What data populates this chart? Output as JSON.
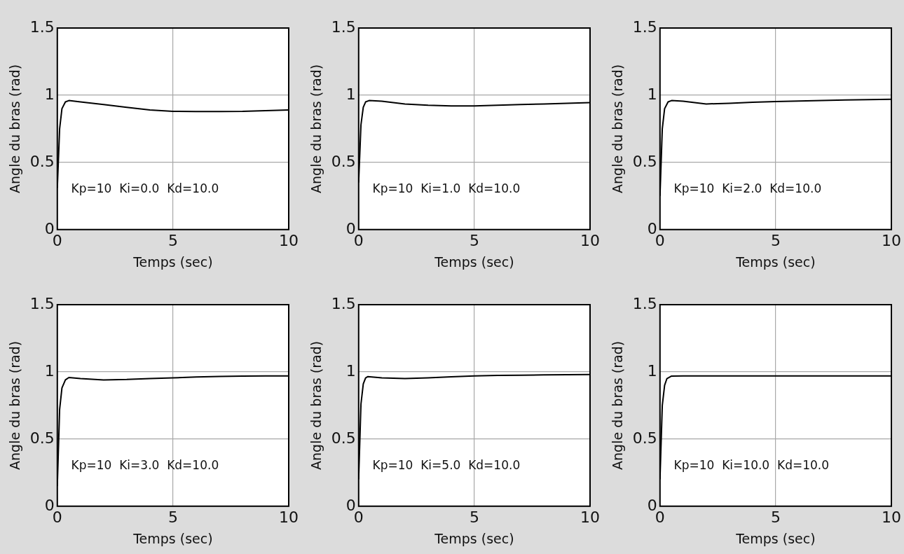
{
  "chart_data": [
    {
      "type": "line",
      "xlabel": "Temps (sec)",
      "ylabel": "Angle du bras (rad)",
      "annotations": [
        "Kp=10  Ki=0.0  Kd=10.0"
      ],
      "xlim": [
        0,
        10
      ],
      "ylim": [
        0,
        1.5
      ],
      "xticks": [
        0,
        5,
        10
      ],
      "yticks": [
        0,
        0.5,
        1,
        1.5
      ],
      "grid": true,
      "legend": false,
      "marker": "none",
      "line_style": "solid",
      "series": [
        {
          "color": "#000000",
          "x": [
            0,
            0.1,
            0.2,
            0.35,
            0.5,
            1,
            2,
            3,
            4,
            5,
            6,
            7,
            8,
            9,
            10
          ],
          "values": [
            0.31,
            0.75,
            0.9,
            0.95,
            0.96,
            0.95,
            0.93,
            0.91,
            0.89,
            0.88,
            0.878,
            0.879,
            0.88,
            0.885,
            0.89
          ]
        }
      ]
    },
    {
      "type": "line",
      "xlabel": "Temps (sec)",
      "ylabel": "Angle du bras (rad)",
      "annotations": [
        "Kp=10  Ki=1.0  Kd=10.0"
      ],
      "xlim": [
        0,
        10
      ],
      "ylim": [
        0,
        1.5
      ],
      "xticks": [
        0,
        5,
        10
      ],
      "yticks": [
        0,
        0.5,
        1,
        1.5
      ],
      "grid": true,
      "legend": false,
      "marker": "none",
      "line_style": "solid",
      "series": [
        {
          "color": "#000000",
          "x": [
            0,
            0.1,
            0.2,
            0.3,
            0.45,
            1,
            2,
            3,
            4,
            5,
            6,
            7,
            8,
            9,
            10
          ],
          "values": [
            0.35,
            0.78,
            0.91,
            0.95,
            0.96,
            0.955,
            0.935,
            0.925,
            0.92,
            0.92,
            0.925,
            0.93,
            0.935,
            0.94,
            0.945
          ]
        }
      ]
    },
    {
      "type": "line",
      "xlabel": "Temps (sec)",
      "ylabel": "Angle du bras (rad)",
      "annotations": [
        "Kp=10  Ki=2.0  Kd=10.0"
      ],
      "xlim": [
        0,
        10
      ],
      "ylim": [
        0,
        1.5
      ],
      "xticks": [
        0,
        5,
        10
      ],
      "yticks": [
        0,
        0.5,
        1,
        1.5
      ],
      "grid": true,
      "legend": false,
      "marker": "none",
      "line_style": "solid",
      "series": [
        {
          "color": "#000000",
          "x": [
            0,
            0.1,
            0.2,
            0.35,
            0.5,
            1,
            2,
            3,
            4,
            5,
            6,
            7,
            8,
            9,
            10
          ],
          "values": [
            0.25,
            0.75,
            0.9,
            0.95,
            0.96,
            0.955,
            0.935,
            0.94,
            0.947,
            0.953,
            0.957,
            0.961,
            0.964,
            0.967,
            0.97
          ]
        }
      ]
    },
    {
      "type": "line",
      "xlabel": "Temps (sec)",
      "ylabel": "Angle du bras (rad)",
      "annotations": [
        "Kp=10  Ki=3.0  Kd=10.0"
      ],
      "xlim": [
        0,
        10
      ],
      "ylim": [
        0,
        1.5
      ],
      "xticks": [
        0,
        5,
        10
      ],
      "yticks": [
        0,
        0.5,
        1,
        1.5
      ],
      "grid": true,
      "legend": false,
      "marker": "none",
      "line_style": "solid",
      "series": [
        {
          "color": "#000000",
          "x": [
            0,
            0.1,
            0.2,
            0.35,
            0.5,
            1,
            2,
            3,
            4,
            5,
            6,
            7,
            8,
            9,
            10
          ],
          "values": [
            0.15,
            0.72,
            0.88,
            0.94,
            0.958,
            0.95,
            0.94,
            0.943,
            0.95,
            0.955,
            0.962,
            0.966,
            0.968,
            0.97,
            0.97
          ]
        }
      ]
    },
    {
      "type": "line",
      "xlabel": "Temps (sec)",
      "ylabel": "Angle du bras (rad)",
      "annotations": [
        "Kp=10  Ki=5.0  Kd=10.0"
      ],
      "xlim": [
        0,
        10
      ],
      "ylim": [
        0,
        1.5
      ],
      "xticks": [
        0,
        5,
        10
      ],
      "yticks": [
        0,
        0.5,
        1,
        1.5
      ],
      "grid": true,
      "legend": false,
      "marker": "none",
      "line_style": "solid",
      "series": [
        {
          "color": "#000000",
          "x": [
            0,
            0.1,
            0.2,
            0.3,
            0.4,
            1,
            2,
            3,
            4,
            5,
            6,
            7,
            8,
            9,
            10
          ],
          "values": [
            0.2,
            0.76,
            0.91,
            0.955,
            0.965,
            0.955,
            0.95,
            0.955,
            0.963,
            0.97,
            0.973,
            0.975,
            0.977,
            0.979,
            0.98
          ]
        }
      ]
    },
    {
      "type": "line",
      "xlabel": "Temps (sec)",
      "ylabel": "Angle du bras (rad)",
      "annotations": [
        "Kp=10  Ki=10.0  Kd=10.0"
      ],
      "xlim": [
        0,
        10
      ],
      "ylim": [
        0,
        1.5
      ],
      "xticks": [
        0,
        5,
        10
      ],
      "yticks": [
        0,
        0.5,
        1,
        1.5
      ],
      "grid": true,
      "legend": false,
      "marker": "none",
      "line_style": "solid",
      "series": [
        {
          "color": "#000000",
          "x": [
            0,
            0.1,
            0.2,
            0.3,
            0.5,
            1,
            2,
            5,
            10
          ],
          "values": [
            0.2,
            0.75,
            0.9,
            0.95,
            0.969,
            0.97,
            0.97,
            0.97,
            0.97
          ]
        }
      ]
    }
  ]
}
